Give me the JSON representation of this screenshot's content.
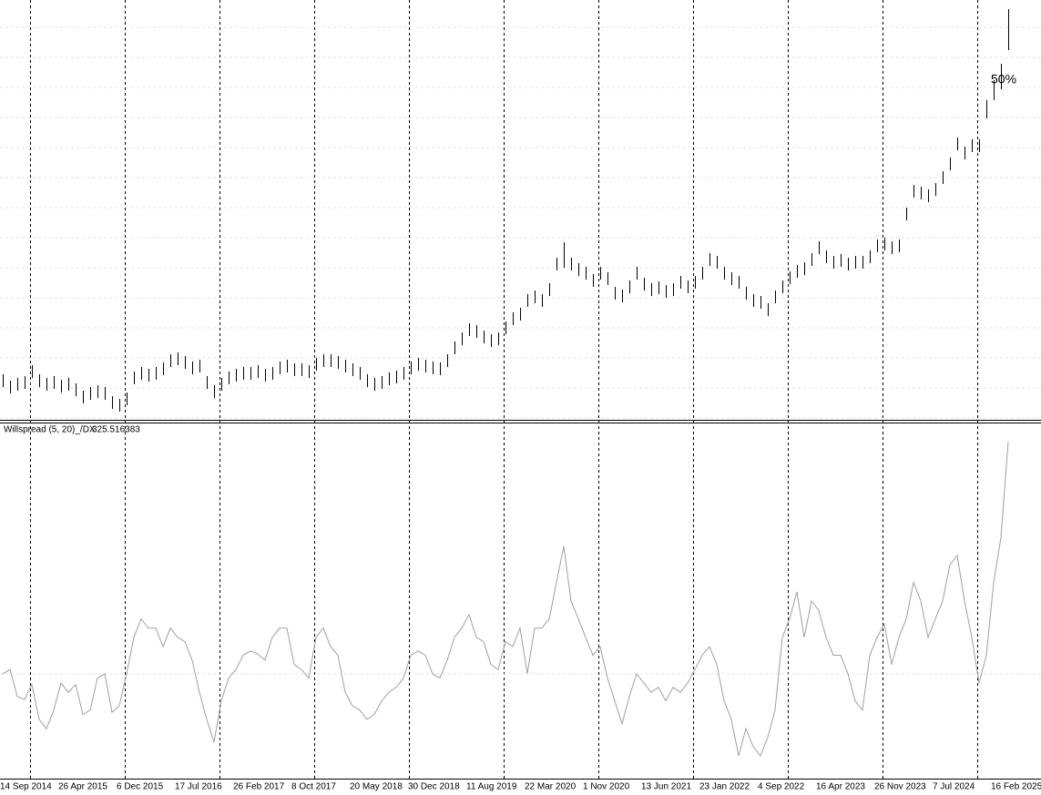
{
  "chart_data": {
    "type": "ohlc",
    "categories": [
      "14 Sep 2014",
      null,
      null,
      null,
      null,
      null,
      null,
      null,
      "26 Apr 2015",
      null,
      null,
      null,
      null,
      null,
      null,
      null,
      "6 Dec 2015",
      null,
      null,
      null,
      null,
      null,
      null,
      null,
      "17 Jul 2016",
      null,
      null,
      null,
      null,
      null,
      null,
      null,
      "26 Feb 2017",
      null,
      null,
      null,
      null,
      null,
      null,
      null,
      "8 Oct 2017",
      null,
      null,
      null,
      null,
      null,
      null,
      null,
      "20 May 2018",
      null,
      null,
      null,
      null,
      null,
      null,
      null,
      "30 Dec 2018",
      null,
      null,
      null,
      null,
      null,
      null,
      null,
      "11 Aug 2019",
      null,
      null,
      null,
      null,
      null,
      null,
      null,
      "22 Mar 2020",
      null,
      null,
      null,
      null,
      null,
      null,
      null,
      "1 Nov 2020",
      null,
      null,
      null,
      null,
      null,
      null,
      null,
      "13 Jun 2021",
      null,
      null,
      null,
      null,
      null,
      null,
      null,
      "23 Jan 2022",
      null,
      null,
      null,
      null,
      null,
      null,
      null,
      "4 Sep 2022",
      null,
      null,
      null,
      null,
      null,
      null,
      null,
      "16 Apr 2023",
      null,
      null,
      null,
      null,
      null,
      null,
      null,
      "26 Nov 2023",
      null,
      null,
      null,
      null,
      null,
      null,
      null,
      "7 Jul 2024",
      null,
      null,
      null,
      null,
      null,
      null,
      null,
      "16 Feb 2025",
      null,
      null
    ],
    "high": [
      49,
      42,
      45,
      47,
      59,
      49,
      45,
      47,
      43,
      45,
      39,
      31,
      35,
      37,
      35,
      25,
      22,
      29,
      52,
      57,
      55,
      57,
      62,
      71,
      73,
      69,
      63,
      65,
      47,
      37,
      45,
      52,
      55,
      57,
      57,
      59,
      55,
      57,
      63,
      65,
      61,
      61,
      59,
      67,
      71,
      71,
      69,
      65,
      61,
      57,
      49,
      45,
      47,
      51,
      53,
      57,
      63,
      67,
      65,
      63,
      62,
      71,
      85,
      95,
      105,
      103,
      97,
      93,
      95,
      107,
      117,
      122,
      137,
      141,
      137,
      149,
      177,
      194,
      177,
      171,
      167,
      159,
      167,
      161,
      145,
      142,
      152,
      167,
      155,
      149,
      151,
      147,
      149,
      157,
      152,
      157,
      167,
      182,
      179,
      167,
      161,
      157,
      145,
      137,
      135,
      127,
      141,
      152,
      162,
      169,
      172,
      182,
      195,
      185,
      179,
      181,
      177,
      179,
      179,
      185,
      197,
      199,
      195,
      197,
      232,
      257,
      255,
      252,
      259,
      272,
      287,
      309,
      299,
      307,
      307,
      350,
      372,
      390,
      450
    ],
    "low": [
      35,
      28,
      31,
      33,
      45,
      35,
      31,
      33,
      29,
      31,
      25,
      17,
      21,
      23,
      21,
      11,
      8,
      15,
      38,
      43,
      41,
      43,
      48,
      57,
      59,
      55,
      49,
      51,
      33,
      23,
      31,
      38,
      41,
      43,
      43,
      45,
      41,
      43,
      49,
      51,
      47,
      47,
      45,
      53,
      57,
      57,
      55,
      51,
      47,
      43,
      35,
      31,
      33,
      37,
      39,
      43,
      49,
      53,
      51,
      49,
      48,
      57,
      71,
      81,
      91,
      89,
      83,
      79,
      81,
      93,
      103,
      108,
      123,
      127,
      123,
      135,
      163,
      166,
      163,
      157,
      153,
      145,
      153,
      147,
      131,
      128,
      138,
      153,
      141,
      135,
      137,
      133,
      135,
      143,
      138,
      143,
      153,
      168,
      165,
      153,
      147,
      143,
      131,
      123,
      121,
      113,
      127,
      138,
      148,
      155,
      158,
      168,
      181,
      171,
      165,
      167,
      163,
      165,
      165,
      171,
      183,
      185,
      181,
      183,
      218,
      243,
      241,
      238,
      245,
      258,
      273,
      295,
      285,
      293,
      293,
      330,
      350,
      362,
      405
    ],
    "ylim": [
      0,
      460
    ],
    "color": "#000000",
    "grid": true,
    "annotation": "50%",
    "indicator": {
      "type": "line",
      "name": "Willspread (5, 20)_/DX",
      "color": "#a0a0a0",
      "ylim": [
        -147,
        351
      ],
      "levels": [
        0
      ],
      "values": [
        0,
        6,
        -32,
        -36,
        -15,
        -64,
        -77,
        -51,
        -13,
        -26,
        -15,
        -57,
        -51,
        -6,
        0,
        -54,
        -45,
        0,
        51,
        77,
        64,
        64,
        38,
        64,
        51,
        45,
        19,
        -26,
        -64,
        -96,
        -38,
        -6,
        6,
        26,
        32,
        28,
        19,
        51,
        64,
        64,
        13,
        6,
        -6,
        51,
        64,
        38,
        26,
        -26,
        -45,
        -51,
        -64,
        -57,
        -38,
        -26,
        -19,
        -6,
        26,
        32,
        26,
        0,
        -6,
        19,
        51,
        64,
        83,
        51,
        45,
        13,
        6,
        45,
        38,
        64,
        0,
        64,
        64,
        77,
        128,
        179,
        102,
        77,
        51,
        26,
        38,
        -6,
        -38,
        -70,
        -32,
        0,
        -13,
        -26,
        -19,
        -38,
        -19,
        -26,
        -13,
        6,
        26,
        38,
        13,
        -38,
        -64,
        -115,
        -77,
        -102,
        -115,
        -89,
        -51,
        51,
        77,
        115,
        51,
        102,
        89,
        51,
        26,
        26,
        0,
        -38,
        -51,
        26,
        51,
        70,
        13,
        51,
        77,
        128,
        102,
        51,
        77,
        102,
        153,
        166,
        102,
        51,
        -13,
        26,
        128,
        191,
        325.516383
      ]
    }
  }
}
